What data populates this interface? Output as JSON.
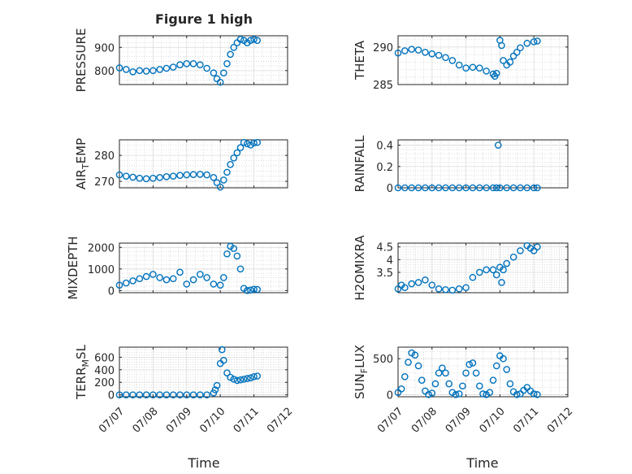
{
  "figure": {
    "title": "Figure 1 high",
    "xlabel_left": "Time",
    "xlabel_right": "Time"
  },
  "colors": {
    "marker": "#0072BD",
    "axis": "#262626",
    "grid": "#c8c8c8"
  },
  "x_tick_labels": [
    "07/07",
    "07/08",
    "07/09",
    "07/10",
    "07/11",
    "07/12"
  ],
  "chart_data": [
    {
      "id": "pressure",
      "type": "scatter",
      "ylabel": "PRESSURE",
      "ylim": [
        740,
        950
      ],
      "yticks": [
        800,
        900
      ],
      "yticklabels": [
        "800",
        "900"
      ],
      "xlim": [
        0,
        5
      ],
      "grid": true,
      "x": [
        0.0,
        0.2,
        0.4,
        0.6,
        0.8,
        1.0,
        1.2,
        1.4,
        1.6,
        1.8,
        2.0,
        2.2,
        2.4,
        2.6,
        2.8,
        2.9,
        3.0,
        3.1,
        3.2,
        3.3,
        3.4,
        3.5,
        3.6,
        3.7,
        3.8,
        3.9,
        4.0,
        4.1
      ],
      "y": [
        812,
        805,
        795,
        800,
        798,
        800,
        805,
        810,
        815,
        825,
        830,
        830,
        825,
        810,
        790,
        765,
        750,
        790,
        830,
        870,
        900,
        920,
        935,
        930,
        920,
        930,
        935,
        930
      ]
    },
    {
      "id": "theta",
      "type": "scatter",
      "ylabel": "THETA",
      "ylim": [
        285,
        291.5
      ],
      "yticks": [
        285,
        290
      ],
      "yticklabels": [
        "285",
        "290"
      ],
      "xlim": [
        0,
        5
      ],
      "grid": true,
      "x": [
        0.0,
        0.2,
        0.4,
        0.6,
        0.8,
        1.0,
        1.2,
        1.4,
        1.6,
        1.8,
        2.0,
        2.2,
        2.4,
        2.6,
        2.8,
        2.85,
        2.9,
        3.0,
        3.05,
        3.1,
        3.2,
        3.3,
        3.4,
        3.5,
        3.6,
        3.8,
        4.0,
        4.1
      ],
      "y": [
        289.2,
        289.5,
        289.7,
        289.6,
        289.3,
        289.1,
        288.9,
        288.6,
        288.2,
        287.6,
        287.2,
        287.3,
        287.2,
        286.8,
        286.4,
        286.1,
        286.5,
        290.9,
        290.2,
        288.2,
        287.6,
        288.0,
        288.8,
        289.3,
        289.9,
        290.5,
        290.7,
        290.8
      ]
    },
    {
      "id": "air_temp",
      "type": "scatter",
      "ylabel": "AIR",
      "ylabel_sub": "T",
      "ylabel_rest": "EMP",
      "ylim": [
        267.5,
        286
      ],
      "yticks": [
        270,
        280
      ],
      "yticklabels": [
        "270",
        "280"
      ],
      "xlim": [
        0,
        5
      ],
      "grid": true,
      "x": [
        0.0,
        0.2,
        0.4,
        0.6,
        0.8,
        1.0,
        1.2,
        1.4,
        1.6,
        1.8,
        2.0,
        2.2,
        2.4,
        2.6,
        2.8,
        2.9,
        3.0,
        3.1,
        3.2,
        3.3,
        3.4,
        3.5,
        3.6,
        3.7,
        3.8,
        3.9,
        4.0,
        4.1
      ],
      "y": [
        272.5,
        272.0,
        271.6,
        271.2,
        271.0,
        271.2,
        271.5,
        271.8,
        272.0,
        272.3,
        272.5,
        272.6,
        272.7,
        272.5,
        271.5,
        269.5,
        267.8,
        270.5,
        273.5,
        276.5,
        279.0,
        281.0,
        283.0,
        285.0,
        284.5,
        284.0,
        284.8,
        285.0
      ]
    },
    {
      "id": "rainfall",
      "type": "scatter",
      "ylabel": "RAINFALL",
      "ylim": [
        0,
        0.45
      ],
      "yticks": [
        0,
        0.2,
        0.4
      ],
      "yticklabels": [
        "0",
        "0.2",
        "0.4"
      ],
      "xlim": [
        0,
        5
      ],
      "grid": true,
      "x": [
        0.0,
        0.2,
        0.4,
        0.6,
        0.8,
        1.0,
        1.2,
        1.4,
        1.6,
        1.8,
        2.0,
        2.2,
        2.4,
        2.6,
        2.8,
        2.9,
        2.95,
        3.0,
        3.2,
        3.4,
        3.6,
        3.8,
        4.0,
        4.1
      ],
      "y": [
        0,
        0,
        0,
        0,
        0,
        0,
        0,
        0,
        0,
        0,
        0,
        0,
        0,
        0,
        0,
        0,
        0.4,
        0,
        0,
        0,
        0,
        0,
        0,
        0
      ]
    },
    {
      "id": "mixdepth",
      "type": "scatter",
      "ylabel": "MIXDEPTH",
      "ylim": [
        -100,
        2200
      ],
      "yticks": [
        0,
        1000,
        2000
      ],
      "yticklabels": [
        "0",
        "1000",
        "2000"
      ],
      "xlim": [
        0,
        5
      ],
      "grid": true,
      "x": [
        0.0,
        0.2,
        0.4,
        0.6,
        0.8,
        1.0,
        1.2,
        1.4,
        1.6,
        1.8,
        2.0,
        2.2,
        2.4,
        2.6,
        2.8,
        3.0,
        3.1,
        3.2,
        3.3,
        3.4,
        3.5,
        3.6,
        3.7,
        3.8,
        3.9,
        4.0,
        4.1
      ],
      "y": [
        250,
        350,
        450,
        550,
        650,
        750,
        600,
        500,
        550,
        850,
        300,
        500,
        750,
        600,
        300,
        250,
        600,
        1700,
        2050,
        1950,
        1600,
        1000,
        100,
        0,
        20,
        60,
        50
      ]
    },
    {
      "id": "h2omixra",
      "type": "scatter",
      "ylabel": "H2OMIXRA",
      "ylim": [
        2.7,
        4.65
      ],
      "yticks": [
        3.5,
        4,
        4.5
      ],
      "yticklabels": [
        "3.5",
        "4",
        "4.5"
      ],
      "xlim": [
        0,
        5
      ],
      "grid": true,
      "x": [
        0.0,
        0.1,
        0.2,
        0.4,
        0.6,
        0.8,
        1.0,
        1.2,
        1.4,
        1.6,
        1.8,
        2.0,
        2.2,
        2.4,
        2.6,
        2.8,
        2.9,
        3.0,
        3.05,
        3.1,
        3.2,
        3.4,
        3.6,
        3.8,
        3.9,
        4.0,
        4.1
      ],
      "y": [
        2.85,
        3.0,
        2.9,
        3.05,
        3.1,
        3.2,
        3.0,
        2.85,
        2.82,
        2.8,
        2.85,
        2.9,
        3.3,
        3.5,
        3.6,
        3.6,
        3.4,
        3.7,
        3.1,
        3.6,
        3.85,
        4.1,
        4.35,
        4.55,
        4.45,
        4.35,
        4.5
      ]
    },
    {
      "id": "terr_msl",
      "type": "scatter",
      "ylabel": "TERR",
      "ylabel_sub": "M",
      "ylabel_rest": "SL",
      "ylim": [
        -30,
        760
      ],
      "yticks": [
        0,
        200,
        400,
        600
      ],
      "yticklabels": [
        "0",
        "200",
        "400",
        "600"
      ],
      "xlim": [
        0,
        5
      ],
      "grid": true,
      "x": [
        0.0,
        0.2,
        0.4,
        0.6,
        0.8,
        1.0,
        1.2,
        1.4,
        1.6,
        1.8,
        2.0,
        2.2,
        2.4,
        2.6,
        2.8,
        2.85,
        2.9,
        3.0,
        3.05,
        3.1,
        3.2,
        3.3,
        3.4,
        3.5,
        3.6,
        3.7,
        3.8,
        3.9,
        4.0,
        4.1
      ],
      "y": [
        0,
        0,
        0,
        0,
        0,
        0,
        0,
        0,
        0,
        0,
        0,
        0,
        0,
        0,
        30,
        80,
        150,
        500,
        720,
        550,
        350,
        280,
        250,
        230,
        240,
        250,
        260,
        270,
        290,
        300
      ]
    },
    {
      "id": "sun_flux",
      "type": "scatter",
      "ylabel": "SUN",
      "ylabel_sub": "F",
      "ylabel_rest": "LUX",
      "ylim": [
        -30,
        660
      ],
      "yticks": [
        0,
        500
      ],
      "yticklabels": [
        "0",
        "500"
      ],
      "xlim": [
        0,
        5
      ],
      "grid": true,
      "x": [
        0.0,
        0.1,
        0.2,
        0.3,
        0.4,
        0.5,
        0.6,
        0.7,
        0.8,
        0.9,
        1.0,
        1.1,
        1.2,
        1.3,
        1.4,
        1.5,
        1.6,
        1.7,
        1.8,
        1.9,
        2.0,
        2.1,
        2.2,
        2.3,
        2.4,
        2.5,
        2.6,
        2.7,
        2.8,
        2.9,
        3.0,
        3.1,
        3.2,
        3.3,
        3.4,
        3.5,
        3.6,
        3.7,
        3.8,
        3.9,
        4.0,
        4.1
      ],
      "y": [
        30,
        80,
        250,
        450,
        580,
        550,
        400,
        200,
        50,
        0,
        20,
        150,
        300,
        370,
        300,
        150,
        30,
        0,
        10,
        120,
        300,
        420,
        440,
        300,
        120,
        10,
        0,
        30,
        200,
        400,
        540,
        500,
        350,
        150,
        40,
        0,
        10,
        60,
        100,
        50,
        10,
        0
      ]
    }
  ]
}
